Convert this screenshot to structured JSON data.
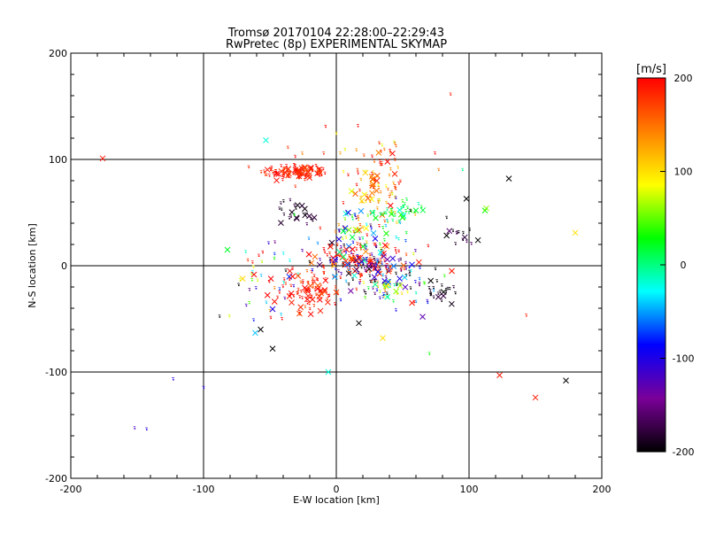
{
  "chart_data": {
    "type": "scatter",
    "title": "Tromsø 20170104 22:28:00–22:29:43",
    "subtitle": "RwPretec (8p) EXPERIMENTAL SKYMAP",
    "xlabel": "E-W location [km]",
    "ylabel": "N-S location [km]",
    "xlim": [
      -200,
      200
    ],
    "ylim": [
      -200,
      200
    ],
    "xticks": [
      "-200",
      "-100",
      "0",
      "100",
      "200"
    ],
    "yticks": [
      "-200",
      "-100",
      "0",
      "100",
      "200"
    ],
    "grid_lines": [
      -100,
      0,
      100
    ],
    "colorbar": {
      "unit": "[m/s]",
      "range": [
        -200,
        200
      ],
      "ticks": [
        "200",
        "100",
        "0",
        "-100",
        "-200"
      ],
      "colors": [
        "#000000",
        "#7a0099",
        "#0000ff",
        "#00ffff",
        "#00ff00",
        "#ffff00",
        "#ff8000",
        "#ff0000"
      ]
    },
    "clusters": [
      {
        "cx": -30,
        "cy": 88,
        "sx": 14,
        "sy": 4,
        "v": 190,
        "v_spread": 15,
        "n_small": 75,
        "n_cross": 32
      },
      {
        "cx": 30,
        "cy": 72,
        "sx": 10,
        "sy": 16,
        "v": 150,
        "v_spread": 40,
        "n_small": 60,
        "n_cross": 22
      },
      {
        "cx": 50,
        "cy": 52,
        "sx": 12,
        "sy": 5,
        "v": 10,
        "v_spread": 15,
        "n_small": 28,
        "n_cross": 8
      },
      {
        "cx": -30,
        "cy": 50,
        "sx": 8,
        "sy": 6,
        "v": -190,
        "v_spread": 10,
        "n_small": 14,
        "n_cross": 10
      },
      {
        "cx": 20,
        "cy": 30,
        "sx": 18,
        "sy": 12,
        "v": 0,
        "v_spread": 100,
        "n_small": 60,
        "n_cross": 18
      },
      {
        "cx": 15,
        "cy": 5,
        "sx": 18,
        "sy": 10,
        "v": 190,
        "v_spread": 20,
        "n_small": 85,
        "n_cross": 35
      },
      {
        "cx": 20,
        "cy": 0,
        "sx": 25,
        "sy": 10,
        "v": -140,
        "v_spread": 60,
        "n_small": 65,
        "n_cross": 25
      },
      {
        "cx": -20,
        "cy": -25,
        "sx": 12,
        "sy": 10,
        "v": 190,
        "v_spread": 15,
        "n_small": 55,
        "n_cross": 28
      },
      {
        "cx": 40,
        "cy": -20,
        "sx": 20,
        "sy": 8,
        "v": -60,
        "v_spread": 120,
        "n_small": 60,
        "n_cross": 15
      },
      {
        "cx": 80,
        "cy": -25,
        "sx": 7,
        "sy": 5,
        "v": -190,
        "v_spread": 10,
        "n_small": 18,
        "n_cross": 4
      },
      {
        "cx": -55,
        "cy": -20,
        "sx": 12,
        "sy": 25,
        "v": 60,
        "v_spread": 120,
        "n_small": 35,
        "n_cross": 6
      },
      {
        "cx": 95,
        "cy": 30,
        "sx": 8,
        "sy": 6,
        "v": -180,
        "v_spread": 20,
        "n_small": 10,
        "n_cross": 4
      },
      {
        "cx": 20,
        "cy": 110,
        "sx": 25,
        "sy": 15,
        "v": 160,
        "v_spread": 40,
        "n_small": 25,
        "n_cross": 0
      }
    ],
    "outliers": [
      {
        "x": -176,
        "y": 101,
        "v": 190,
        "mark": "cross"
      },
      {
        "x": -53,
        "y": 118,
        "v": -20,
        "mark": "cross"
      },
      {
        "x": 86,
        "y": 161,
        "v": 190,
        "mark": "dot"
      },
      {
        "x": 130,
        "y": 82,
        "v": -200,
        "mark": "cross"
      },
      {
        "x": 180,
        "y": 31,
        "v": 100,
        "mark": "cross"
      },
      {
        "x": 112,
        "y": 52,
        "v": 30,
        "mark": "cross"
      },
      {
        "x": 113,
        "y": 54,
        "v": 60,
        "mark": "cross"
      },
      {
        "x": 98,
        "y": 63,
        "v": -200,
        "mark": "cross"
      },
      {
        "x": -82,
        "y": 15,
        "v": 20,
        "mark": "cross"
      },
      {
        "x": -123,
        "y": -107,
        "v": -100,
        "mark": "dot"
      },
      {
        "x": -100,
        "y": -115,
        "v": -100,
        "mark": "dot"
      },
      {
        "x": -152,
        "y": -153,
        "v": -120,
        "mark": "dot"
      },
      {
        "x": -143,
        "y": -154,
        "v": -100,
        "mark": "dot"
      },
      {
        "x": -6,
        "y": -100,
        "v": -20,
        "mark": "cross"
      },
      {
        "x": 123,
        "y": -103,
        "v": 190,
        "mark": "cross"
      },
      {
        "x": 150,
        "y": -124,
        "v": 190,
        "mark": "cross"
      },
      {
        "x": 173,
        "y": -108,
        "v": -200,
        "mark": "cross"
      },
      {
        "x": 143,
        "y": -47,
        "v": 190,
        "mark": "dot"
      },
      {
        "x": 35,
        "y": -68,
        "v": 100,
        "mark": "cross"
      },
      {
        "x": 70,
        "y": -83,
        "v": 30,
        "mark": "dot"
      },
      {
        "x": -48,
        "y": -78,
        "v": -200,
        "mark": "cross"
      },
      {
        "x": -88,
        "y": -48,
        "v": -200,
        "mark": "dot"
      },
      {
        "x": -57,
        "y": -60,
        "v": -200,
        "mark": "cross"
      },
      {
        "x": 17,
        "y": -54,
        "v": -200,
        "mark": "cross"
      },
      {
        "x": 65,
        "y": -48,
        "v": -130,
        "mark": "cross"
      },
      {
        "x": 87,
        "y": -5,
        "v": 190,
        "mark": "cross"
      },
      {
        "x": 57,
        "y": -35,
        "v": 190,
        "mark": "cross"
      },
      {
        "x": 83,
        "y": 45,
        "v": -200,
        "mark": "dot"
      },
      {
        "x": 77,
        "y": 90,
        "v": 150,
        "mark": "dot"
      },
      {
        "x": 95,
        "y": 90,
        "v": 0,
        "mark": "dot"
      }
    ],
    "legend": "colorbar-right",
    "grid": true
  }
}
